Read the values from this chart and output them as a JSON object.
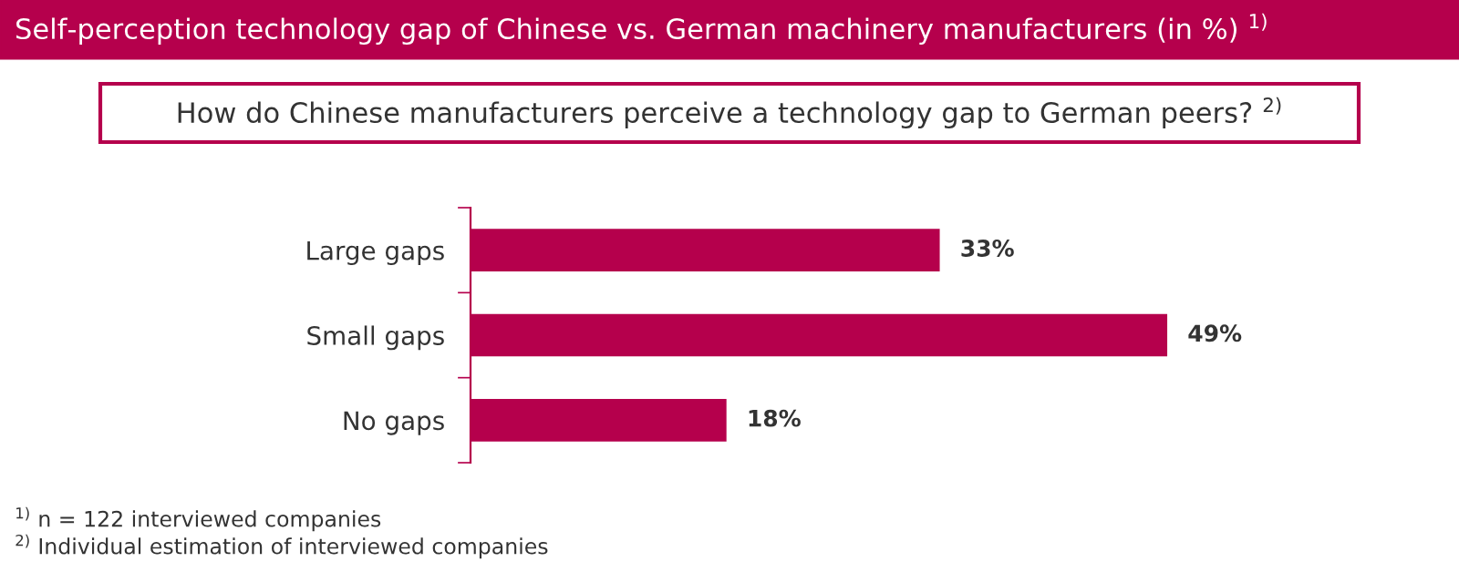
{
  "chart_data": {
    "type": "bar",
    "orientation": "horizontal",
    "title": "Self-perception technology gap of Chinese vs. German machinery manufacturers (in %) $^{1)}$",
    "subtitle": "How do Chinese manufacturers perceive a technology gap to German peers? $^{2)}$",
    "categories": [
      "Large gaps",
      "Small gaps",
      "No gaps"
    ],
    "values": [
      33,
      49,
      18
    ],
    "value_labels": [
      "33%",
      "49%",
      "18%"
    ],
    "color": "#b5004c",
    "annotations": [
      "$^{1)}$ n = 122 interviewed companies",
      "$^{2)}$ Individual estimation of interviewed companies"
    ]
  }
}
